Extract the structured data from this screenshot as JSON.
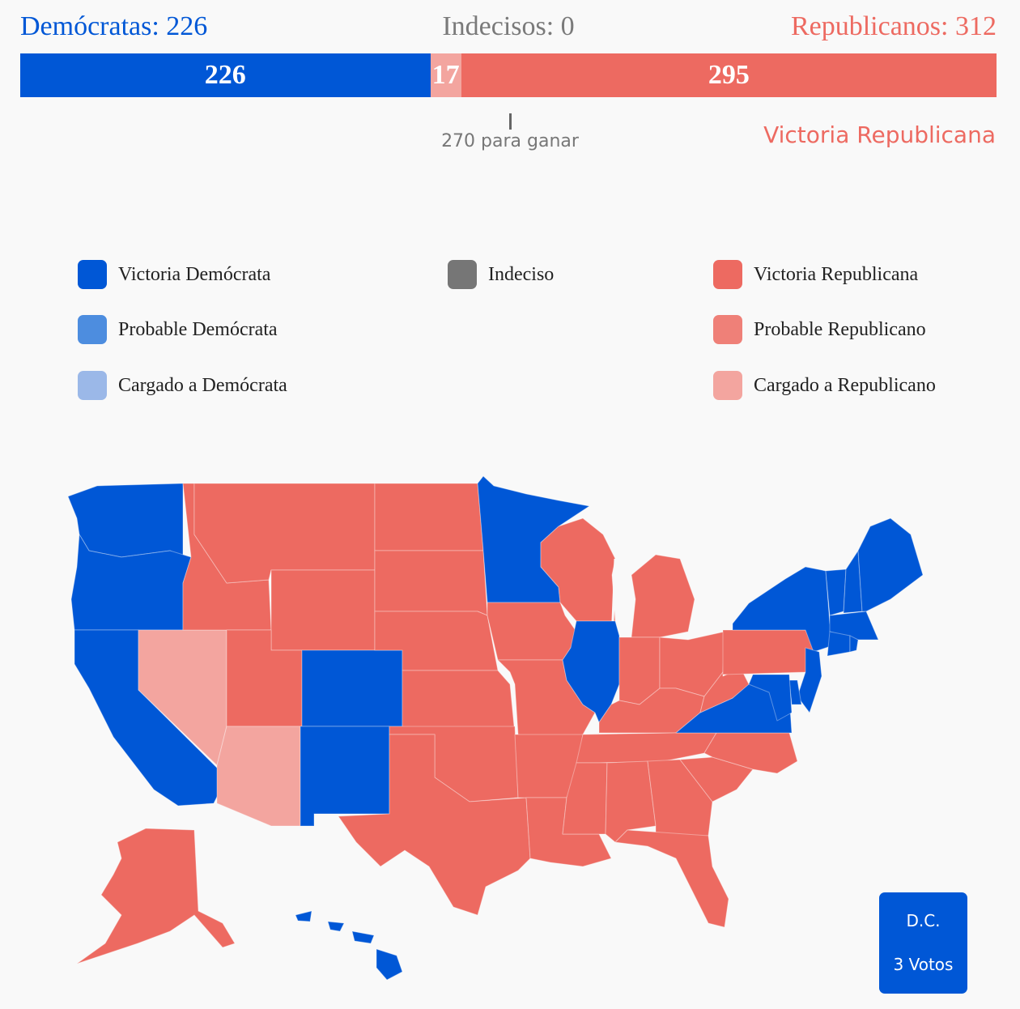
{
  "colors": {
    "dem_win": "#0057d6",
    "dem_likely": "#4d8ddf",
    "dem_lean": "#9bb8e8",
    "undecided": "#767676",
    "rep_win": "#ed6a61",
    "rep_likely": "#ef8078",
    "rep_lean": "#f3a59f",
    "neutral_text": "#7a7a7a",
    "background": "#f9f9f9"
  },
  "totals": {
    "democrats": "Demócratas: 226",
    "undecided": "Indecisos: 0",
    "republicans": "Republicanos: 312"
  },
  "bar": [
    {
      "label": "226",
      "value": 226,
      "color": "#0057d6"
    },
    {
      "label": "17",
      "value": 17,
      "color": "#f3a59f"
    },
    {
      "label": "295",
      "value": 295,
      "color": "#ed6a61"
    }
  ],
  "threshold_label": "270 para ganar",
  "outcome": "Victoria Republicana",
  "legend": {
    "dem_win": {
      "label": "Victoria Demócrata",
      "color": "#0057d6"
    },
    "dem_likely": {
      "label": "Probable Demócrata",
      "color": "#4d8ddf"
    },
    "dem_lean": {
      "label": "Cargado a Demócrata",
      "color": "#9bb8e8"
    },
    "undecided": {
      "label": "Indeciso",
      "color": "#767676"
    },
    "rep_win": {
      "label": "Victoria Republicana",
      "color": "#ed6a61"
    },
    "rep_likely": {
      "label": "Probable Republicano",
      "color": "#ef8078"
    },
    "rep_lean": {
      "label": "Cargado a Republicano",
      "color": "#f3a59f"
    }
  },
  "states": {
    "WA": "dem_win",
    "OR": "dem_win",
    "CA": "dem_win",
    "NV": "rep_lean",
    "ID": "rep_win",
    "MT": "rep_win",
    "WY": "rep_win",
    "UT": "rep_win",
    "AZ": "rep_lean",
    "CO": "dem_win",
    "NM": "dem_win",
    "ND": "rep_win",
    "SD": "rep_win",
    "NE": "rep_win",
    "KS": "rep_win",
    "OK": "rep_win",
    "TX": "rep_win",
    "MN": "dem_win",
    "IA": "rep_win",
    "MO": "rep_win",
    "AR": "rep_win",
    "LA": "rep_win",
    "WI": "rep_win",
    "IL": "dem_win",
    "MI": "rep_win",
    "IN": "rep_win",
    "OH": "rep_win",
    "KY": "rep_win",
    "TN": "rep_win",
    "MS": "rep_win",
    "AL": "rep_win",
    "GA": "rep_win",
    "FL": "rep_win",
    "SC": "rep_win",
    "NC": "rep_win",
    "VA": "dem_win",
    "WV": "rep_win",
    "PA": "rep_win",
    "NY": "dem_win",
    "VT": "dem_win",
    "NH": "dem_win",
    "ME": "dem_win",
    "MA": "dem_win",
    "CT": "dem_win",
    "RI": "dem_win",
    "NJ": "dem_win",
    "DE": "dem_win",
    "MD": "dem_win",
    "AK": "rep_win",
    "HI": "dem_win"
  },
  "dc": {
    "name": "D.C.",
    "votes": "3 Votos",
    "status": "dem_win"
  }
}
